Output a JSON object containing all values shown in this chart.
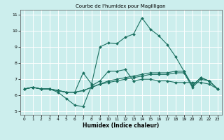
{
  "title": "Courbe de l'humidex pour Magilligan",
  "xlabel": "Humidex (Indice chaleur)",
  "bg_color": "#cceeed",
  "grid_color": "#ffffff",
  "line_color": "#1a7060",
  "xlim": [
    -0.5,
    23.5
  ],
  "ylim": [
    4.8,
    11.3
  ],
  "xticks": [
    0,
    1,
    2,
    3,
    4,
    5,
    6,
    7,
    8,
    9,
    10,
    11,
    12,
    13,
    14,
    15,
    16,
    17,
    18,
    19,
    20,
    21,
    22,
    23
  ],
  "yticks": [
    5,
    6,
    7,
    8,
    9,
    10,
    11
  ],
  "series": [
    {
      "x": [
        0,
        1,
        2,
        3,
        4,
        5,
        6,
        7,
        8,
        9,
        10,
        11,
        12,
        13,
        14,
        15,
        16,
        17,
        18,
        19,
        20,
        21,
        22,
        23
      ],
      "y": [
        6.4,
        6.5,
        6.4,
        6.4,
        6.2,
        5.8,
        5.4,
        5.3,
        6.6,
        6.9,
        7.5,
        7.5,
        7.6,
        6.9,
        7.0,
        7.0,
        6.9,
        6.9,
        6.8,
        6.8,
        6.8,
        6.8,
        6.7,
        6.4
      ]
    },
    {
      "x": [
        0,
        1,
        2,
        3,
        4,
        5,
        6,
        7,
        8,
        9,
        10,
        11,
        12,
        13,
        14,
        15,
        16,
        17,
        18,
        19,
        20,
        21,
        22,
        23
      ],
      "y": [
        6.4,
        6.5,
        6.4,
        6.4,
        6.3,
        6.2,
        6.2,
        7.4,
        6.7,
        9.0,
        9.25,
        9.2,
        9.6,
        9.8,
        10.8,
        10.1,
        9.7,
        9.15,
        8.4,
        7.5,
        6.6,
        7.1,
        6.9,
        6.4
      ]
    },
    {
      "x": [
        0,
        1,
        2,
        3,
        4,
        5,
        6,
        7,
        8,
        9,
        10,
        11,
        12,
        13,
        14,
        15,
        16,
        17,
        18,
        19,
        20,
        21,
        22,
        23
      ],
      "y": [
        6.4,
        6.5,
        6.4,
        6.4,
        6.3,
        6.2,
        6.2,
        6.3,
        6.5,
        6.7,
        6.9,
        7.0,
        7.1,
        7.2,
        7.3,
        7.4,
        7.4,
        7.4,
        7.5,
        7.5,
        6.6,
        7.1,
        6.9,
        6.4
      ]
    },
    {
      "x": [
        0,
        1,
        2,
        3,
        4,
        5,
        6,
        7,
        8,
        9,
        10,
        11,
        12,
        13,
        14,
        15,
        16,
        17,
        18,
        19,
        20,
        21,
        22,
        23
      ],
      "y": [
        6.4,
        6.5,
        6.4,
        6.4,
        6.3,
        6.2,
        6.2,
        6.3,
        6.5,
        6.7,
        6.8,
        6.9,
        7.0,
        7.1,
        7.2,
        7.3,
        7.3,
        7.3,
        7.4,
        7.4,
        6.5,
        7.0,
        6.9,
        6.4
      ]
    }
  ]
}
